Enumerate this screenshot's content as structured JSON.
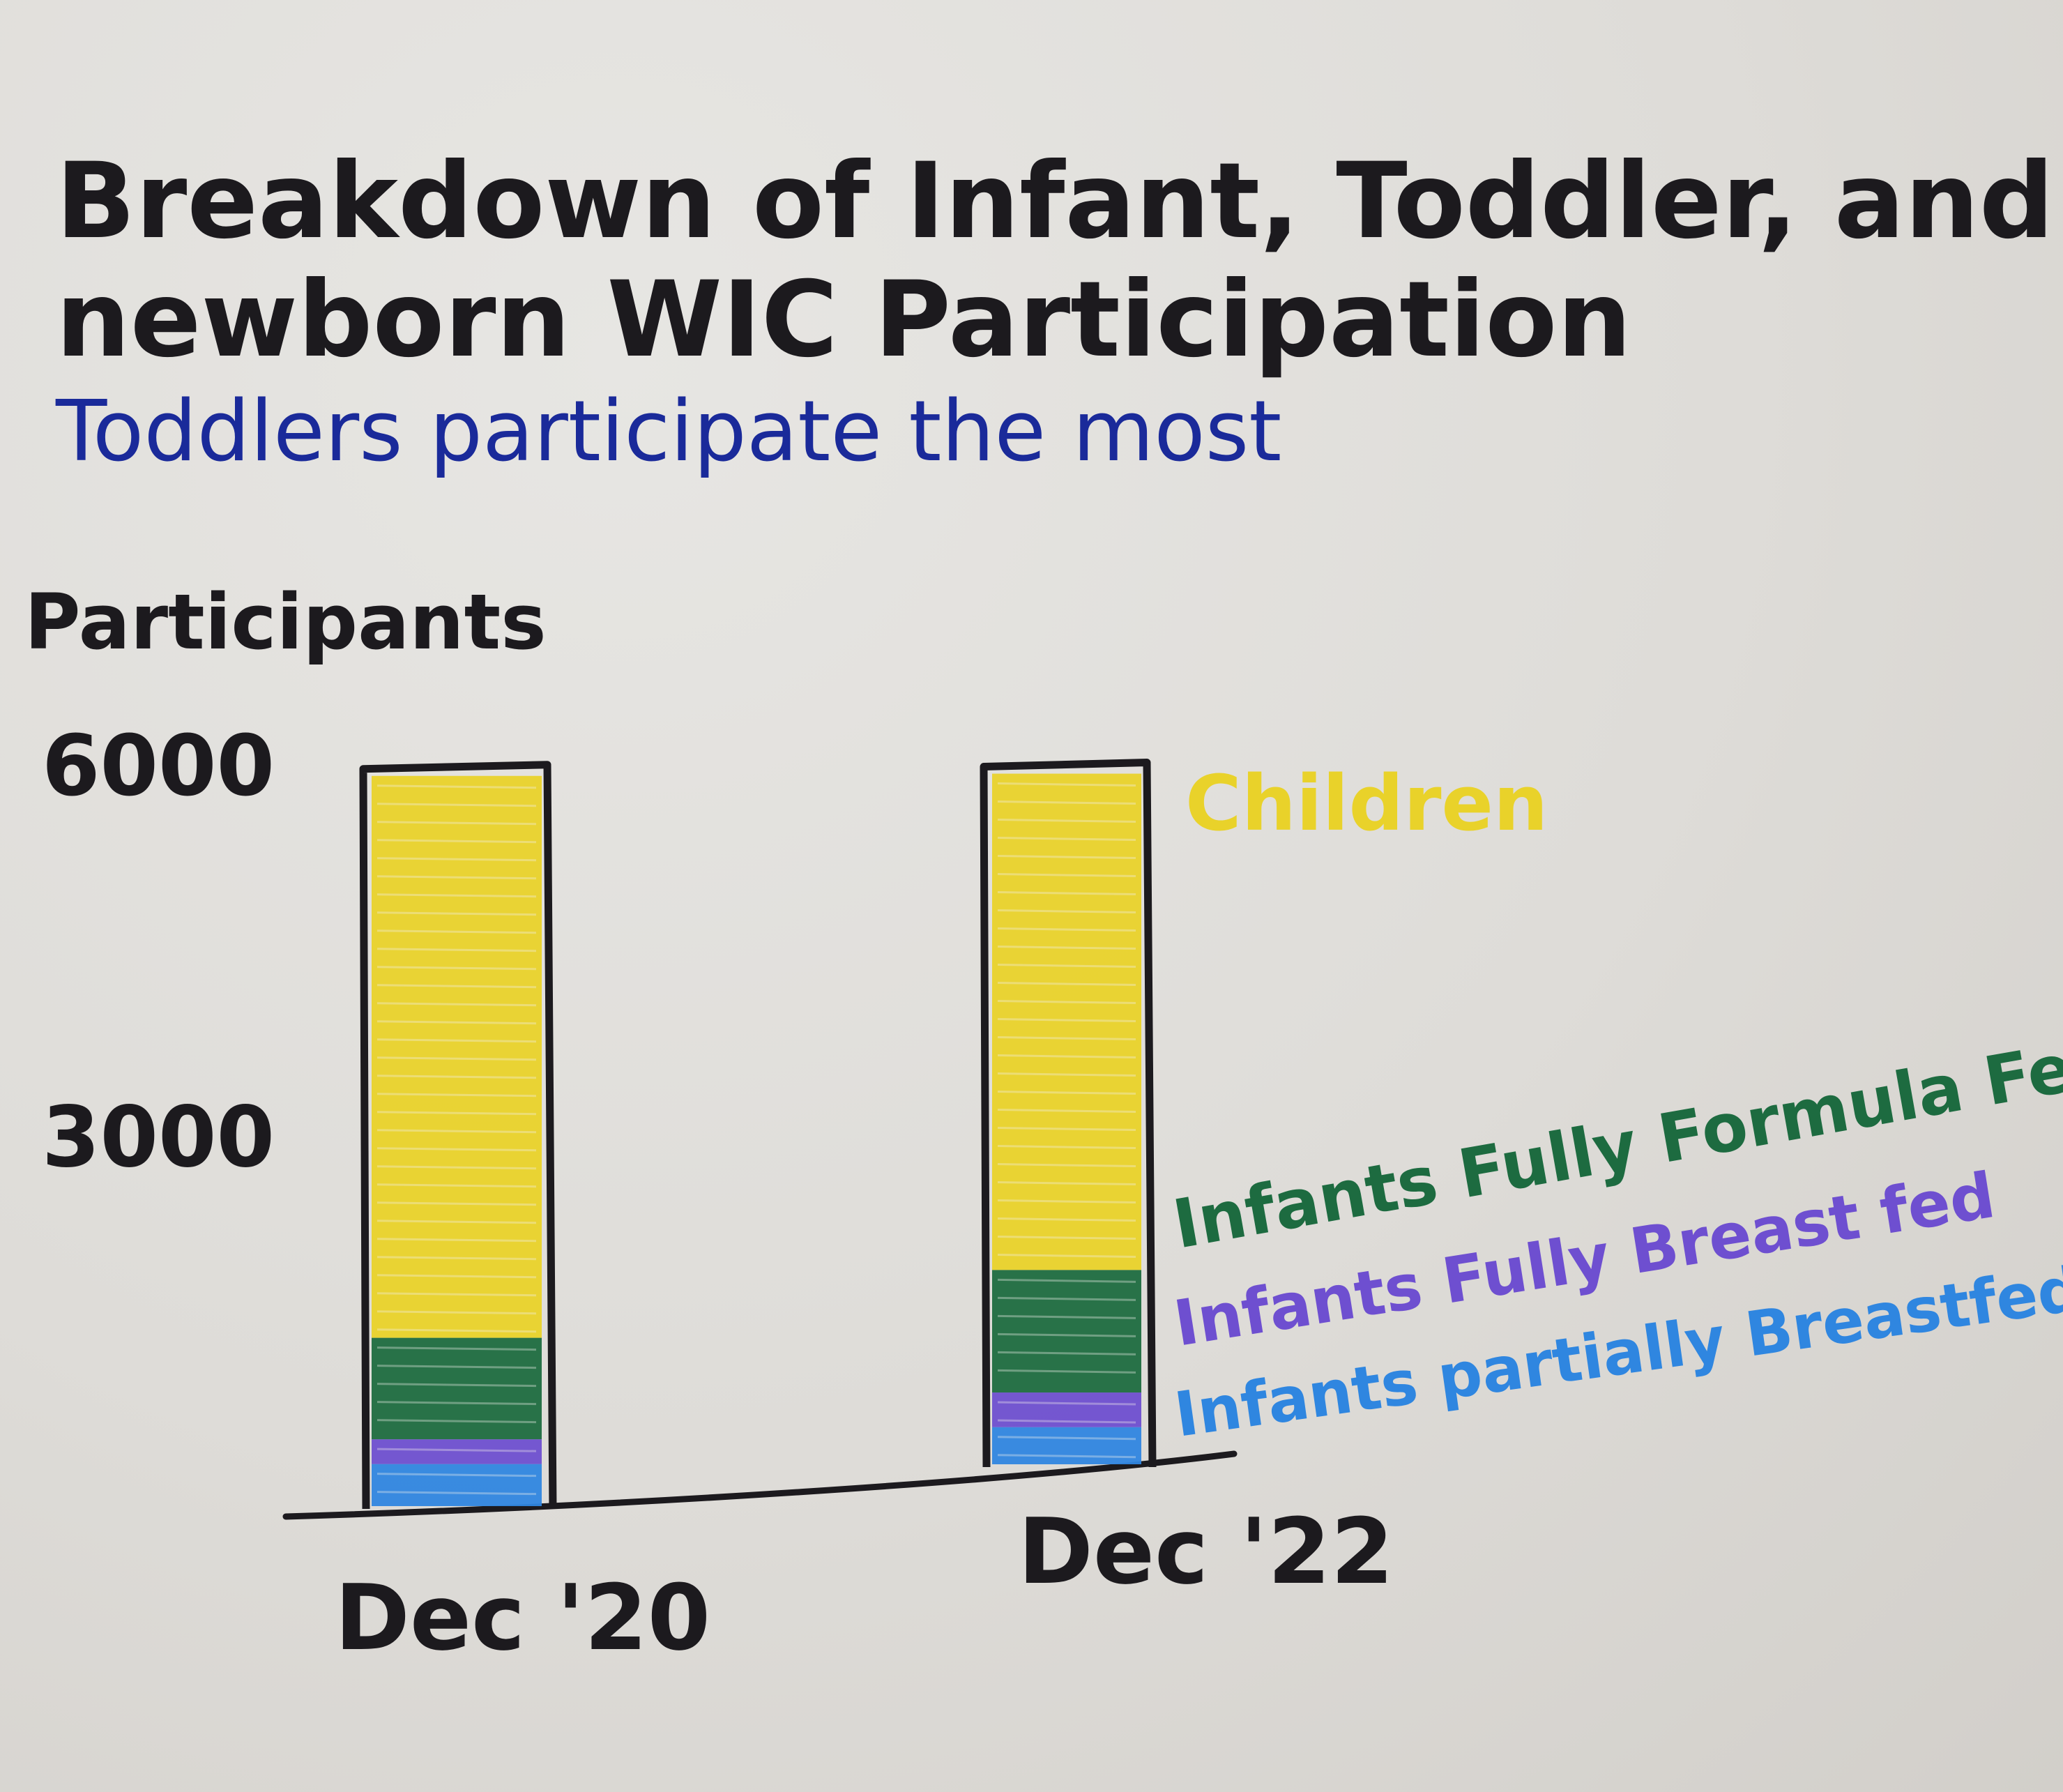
{
  "chart_data": {
    "type": "bar",
    "stacked": true,
    "title": "Breakdown of Infant, Toddler, and newborn WIC Participation",
    "subtitle": "Toddlers participate the most",
    "ylabel": "Participants",
    "ylim": [
      0,
      6000
    ],
    "yticks": [
      {
        "value": 6000,
        "label": "6000"
      },
      {
        "value": 3000,
        "label": "3000"
      }
    ],
    "categories": [
      "Dec '20",
      "Dec '22"
    ],
    "series": [
      {
        "name": "Infants partially Breastfed",
        "color": "#2f86e0",
        "values": [
          340,
          300
        ]
      },
      {
        "name": "Infants Fully Breast fed",
        "color": "#6e4fd0",
        "values": [
          200,
          280
        ]
      },
      {
        "name": "Infants Fully Formula Fed",
        "color": "#1d6b40",
        "values": [
          820,
          990
        ]
      },
      {
        "name": "Children",
        "color": "#e9d22a",
        "values": [
          4540,
          4010
        ]
      }
    ],
    "legend_placement": "right of second bar",
    "grid": false
  },
  "colors": {
    "ink": "#1c1a1e",
    "subtitle": "#1a2a9a"
  }
}
